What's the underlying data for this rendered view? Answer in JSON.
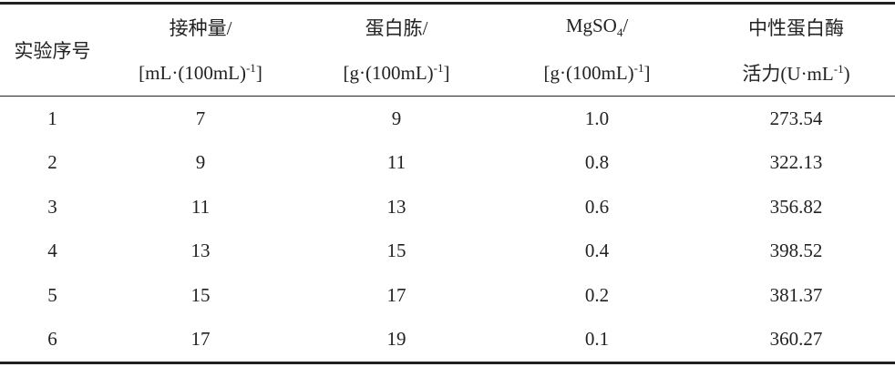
{
  "table": {
    "header": [
      [
        [
          [
            "实验序号"
          ]
        ]
      ],
      [
        [
          [
            "接种量/"
          ]
        ],
        [
          [
            "[mL·(100mL)",
            {
              "sup": "-1"
            },
            "]"
          ]
        ]
      ],
      [
        [
          [
            "蛋白胨/"
          ]
        ],
        [
          [
            "[g·(100mL)",
            {
              "sup": "-1"
            },
            "]"
          ]
        ]
      ],
      [
        [
          [
            "MgSO",
            {
              "sub": "4"
            },
            "/"
          ]
        ],
        [
          [
            "[g·(100mL)",
            {
              "sup": "-1"
            },
            "]"
          ]
        ]
      ],
      [
        [
          [
            "中性蛋白酶"
          ]
        ],
        [
          [
            "活力(U·mL",
            {
              "sup": "-1"
            },
            ")"
          ]
        ]
      ]
    ],
    "rows": [
      [
        "1",
        "7",
        "9",
        "1.0",
        "273.54"
      ],
      [
        "2",
        "9",
        "11",
        "0.8",
        "322.13"
      ],
      [
        "3",
        "11",
        "13",
        "0.6",
        "356.82"
      ],
      [
        "4",
        "13",
        "15",
        "0.4",
        "398.52"
      ],
      [
        "5",
        "15",
        "17",
        "0.2",
        "381.37"
      ],
      [
        "6",
        "17",
        "19",
        "0.1",
        "360.27"
      ]
    ]
  }
}
